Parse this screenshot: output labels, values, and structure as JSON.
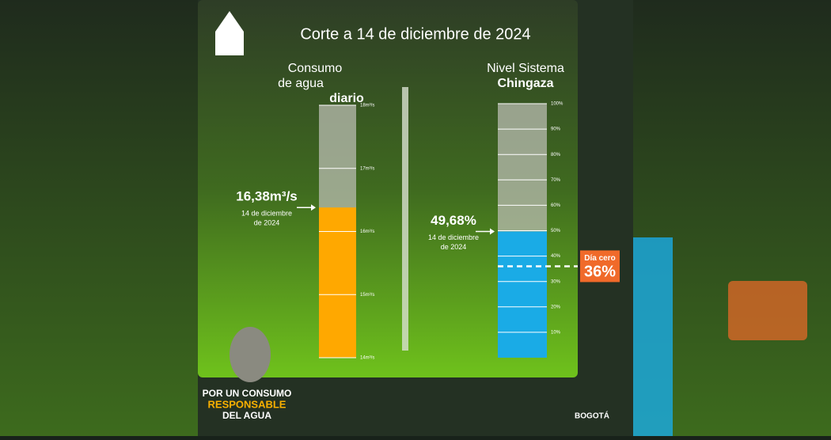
{
  "title": "Corte a 14 de diciembre de 2024",
  "consumo": {
    "heading": [
      "Consumo",
      "de agua"
    ],
    "heading_bold": "diario",
    "value": 16.38,
    "value_label": "16,38m³/s",
    "date": [
      "14 de diciembre",
      "de 2024"
    ],
    "color": "#ffa800",
    "lim": [
      14,
      18
    ],
    "ticks": [
      {
        "value": 18,
        "label": "18m³/s"
      },
      {
        "value": 17,
        "label": "17m³/s"
      },
      {
        "value": 16,
        "label": "16m³/s"
      },
      {
        "value": 15,
        "label": "15m³/s"
      },
      {
        "value": 14,
        "label": "14m³/s"
      }
    ]
  },
  "chingaza": {
    "heading": [
      "Nivel Sistema"
    ],
    "heading_bold": "Chingaza",
    "value": 49.68,
    "value_label": "49,68%",
    "date": [
      "14 de diciembre",
      "de 2024"
    ],
    "color": "#1aabe6",
    "lim": [
      0,
      100
    ],
    "ticks": [
      {
        "value": 100,
        "label": "100%"
      },
      {
        "value": 90,
        "label": "90%"
      },
      {
        "value": 80,
        "label": "80%"
      },
      {
        "value": 70,
        "label": "70%"
      },
      {
        "value": 60,
        "label": "60%"
      },
      {
        "value": 50,
        "label": "50%"
      },
      {
        "value": 40,
        "label": "40%"
      },
      {
        "value": 30,
        "label": "30%"
      },
      {
        "value": 20,
        "label": "20%"
      },
      {
        "value": 10,
        "label": "10%"
      }
    ],
    "dia_cero": {
      "label": "Día cero",
      "value": 36,
      "value_label": "36%"
    }
  },
  "footer": {
    "slogan": [
      "POR UN CONSUMO",
      "RESPONSABLE",
      "DEL AGUA"
    ],
    "logo": "BOGOTÁ"
  }
}
